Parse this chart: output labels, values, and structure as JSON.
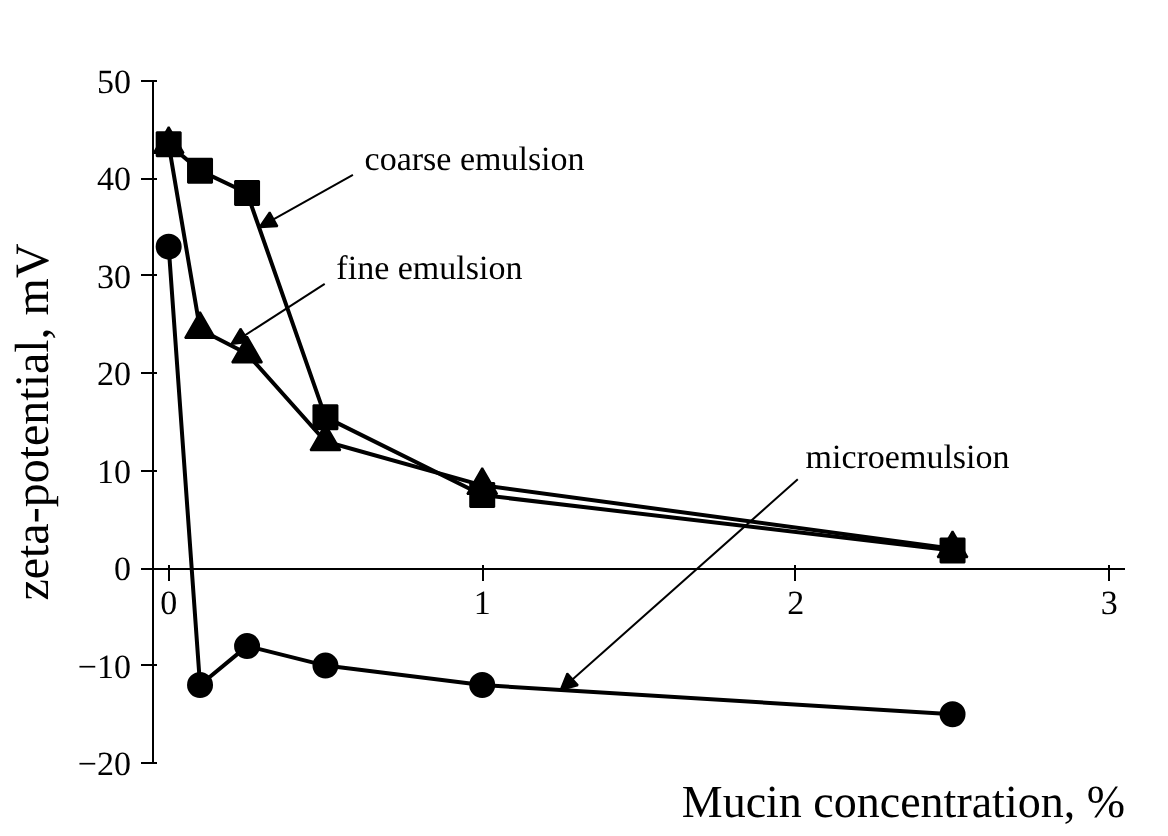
{
  "chart_data": {
    "type": "line",
    "xlabel": "Mucin concentration, %",
    "ylabel": "zeta-potential, mV",
    "x": [
      0,
      0.1,
      0.25,
      0.5,
      1,
      2.5
    ],
    "series": [
      {
        "color": "#000000",
        "marker": "square",
        "values": [
          43.5,
          40.8,
          38.5,
          15.5,
          7.5,
          1.8
        ]
      },
      {
        "color": "#000000",
        "marker": "triangle",
        "values": [
          43.5,
          24.5,
          22,
          13,
          8.5,
          2
        ]
      },
      {
        "color": "#000000",
        "marker": "circle",
        "values": [
          33,
          -12,
          -8,
          -10,
          -12,
          -15
        ]
      }
    ],
    "annotations": [
      {
        "text": "coarse emulsion",
        "x": 0.29,
        "y": 35
      },
      {
        "text": "fine emulsion",
        "x": 0.2,
        "y": 23
      },
      {
        "text": "microemulsion",
        "x": 1.25,
        "y": -12.5
      }
    ],
    "xlim": [
      -0.05,
      3.05
    ],
    "ylim": [
      -20,
      50
    ],
    "xticks": [
      0,
      1,
      2,
      3
    ],
    "yticks": [
      -20,
      -10,
      0,
      10,
      20,
      30,
      40,
      50
    ],
    "grid": false
  }
}
